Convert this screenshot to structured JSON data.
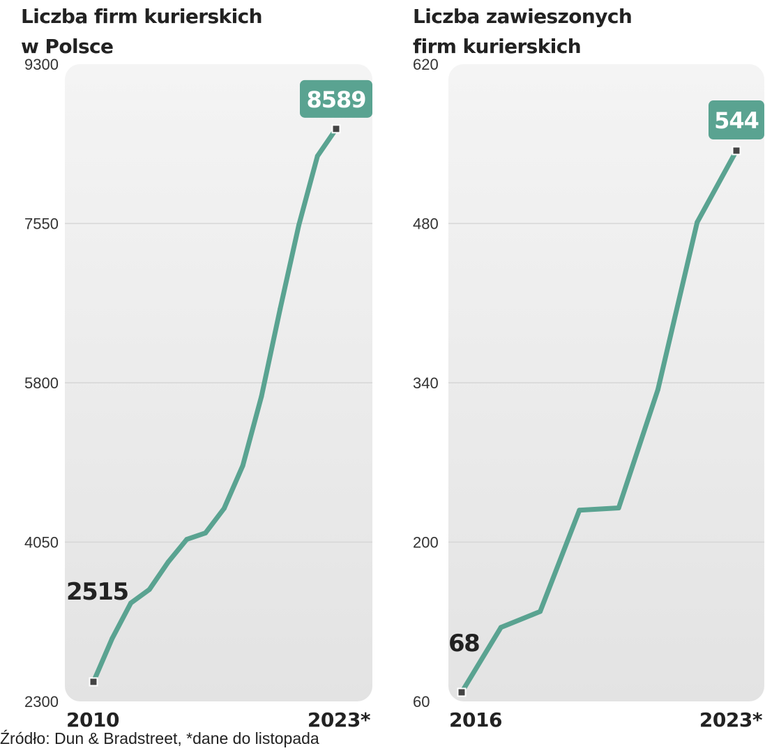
{
  "charts": [
    {
      "title_lines": [
        "Liczba firm kurierskich",
        "w Polsce"
      ]
    },
    {
      "title_lines": [
        "Liczba zawieszonych",
        "firm kurierskich"
      ]
    }
  ],
  "source": "Źródło: Dun & Bradstreet, *dane do listopada",
  "colors": {
    "line": "#5aa391",
    "badge": "#5aa391",
    "marker": "#444444",
    "panel_top": "#f4f4f4",
    "panel_bottom": "#e3e3e3",
    "grid": "#d6d6d6"
  },
  "chart_data": [
    {
      "type": "line",
      "title": "Liczba firm kurierskich w Polsce",
      "x": [
        2010,
        2011,
        2012,
        2013,
        2014,
        2015,
        2016,
        2017,
        2018,
        2019,
        2020,
        2021,
        2022,
        2023
      ],
      "values": [
        2515,
        2990,
        3380,
        3530,
        3830,
        4080,
        4150,
        4420,
        4890,
        5650,
        6610,
        7530,
        8290,
        8589
      ],
      "ylim": [
        2300,
        9300
      ],
      "yticks": [
        2300,
        4050,
        5800,
        7550,
        9300
      ],
      "ytick_labels": [
        "2300",
        "4050",
        "5800",
        "7550",
        "9300"
      ],
      "xtick_labels": [
        "2010",
        "2023*"
      ],
      "start_label": "2515",
      "end_label": "8589",
      "grid": true
    },
    {
      "type": "line",
      "title": "Liczba zawieszonych firm kurierskich",
      "x": [
        2016,
        2017,
        2018,
        2019,
        2020,
        2021,
        2022,
        2023
      ],
      "values": [
        68,
        125,
        139,
        228,
        230,
        334,
        481,
        544
      ],
      "ylim": [
        60,
        620
      ],
      "yticks": [
        60,
        200,
        340,
        480,
        620
      ],
      "ytick_labels": [
        "60",
        "200",
        "340",
        "480",
        "620"
      ],
      "xtick_labels": [
        "2016",
        "2023*"
      ],
      "start_label": "68",
      "end_label": "544",
      "grid": true
    }
  ]
}
